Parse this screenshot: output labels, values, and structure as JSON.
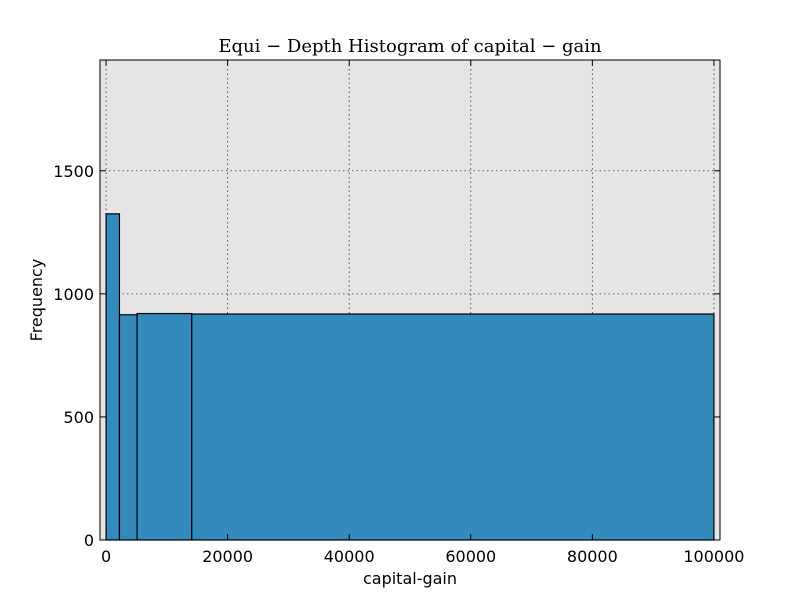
{
  "chart_data": {
    "type": "bar",
    "title": "Equi − Depth Histogram of capital − gain",
    "xlabel": "capital-gain",
    "ylabel": "Frequency",
    "xlim": [
      -1000,
      101000
    ],
    "ylim": [
      0,
      1950
    ],
    "xticks": [
      0,
      20000,
      40000,
      60000,
      80000,
      100000
    ],
    "yticks": [
      0,
      500,
      1000,
      1500
    ],
    "grid": true,
    "bins": [
      {
        "start": 0,
        "end": 2200,
        "value": 1325
      },
      {
        "start": 2200,
        "end": 5100,
        "value": 915
      },
      {
        "start": 5100,
        "end": 14100,
        "value": 920
      },
      {
        "start": 14100,
        "end": 99999,
        "value": 918
      }
    ],
    "colors": {
      "bar": "#348abd",
      "bar_edge": "#000000",
      "plot_bg": "#e5e5e5"
    }
  }
}
